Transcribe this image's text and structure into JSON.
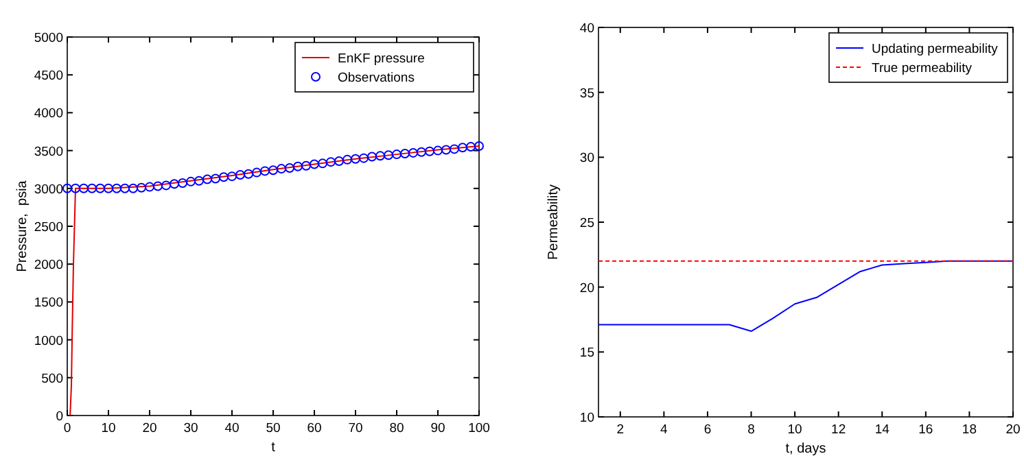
{
  "chart_data": [
    {
      "type": "line",
      "xlabel": "t",
      "ylabel": "Pressure,  psia",
      "xlim": [
        0,
        100
      ],
      "ylim": [
        0,
        5000
      ],
      "xticks": [
        0,
        10,
        20,
        30,
        40,
        50,
        60,
        70,
        80,
        90,
        100
      ],
      "yticks": [
        0,
        500,
        1000,
        1500,
        2000,
        2500,
        3000,
        3500,
        4000,
        4500,
        5000
      ],
      "legend": "top right",
      "series": [
        {
          "name": "EnKF pressure",
          "color": "#e00000",
          "x": [
            0.7,
            1,
            1.2,
            1.5,
            1.8,
            2,
            10,
            20,
            30,
            40,
            50,
            60,
            70,
            80,
            90,
            100
          ],
          "values": [
            0,
            400,
            1100,
            2000,
            2600,
            3000,
            3000,
            3030,
            3100,
            3170,
            3250,
            3320,
            3390,
            3450,
            3510,
            3560
          ]
        },
        {
          "name": "Observations",
          "color": "#0000ff",
          "type": "scatter",
          "marker": "circle",
          "x": [
            0,
            2,
            4,
            6,
            8,
            10,
            12,
            14,
            16,
            18,
            20,
            22,
            24,
            26,
            28,
            30,
            32,
            34,
            36,
            38,
            40,
            42,
            44,
            46,
            48,
            50,
            52,
            54,
            56,
            58,
            60,
            62,
            64,
            66,
            68,
            70,
            72,
            74,
            76,
            78,
            80,
            82,
            84,
            86,
            88,
            90,
            92,
            94,
            96,
            98,
            100
          ],
          "values": [
            3000,
            3000,
            3000,
            3000,
            3000,
            3000,
            3000,
            3000,
            3000,
            3010,
            3020,
            3030,
            3040,
            3060,
            3070,
            3090,
            3100,
            3120,
            3130,
            3150,
            3160,
            3180,
            3190,
            3210,
            3230,
            3240,
            3260,
            3270,
            3290,
            3300,
            3320,
            3330,
            3350,
            3360,
            3380,
            3390,
            3400,
            3420,
            3430,
            3440,
            3450,
            3460,
            3470,
            3480,
            3490,
            3500,
            3510,
            3520,
            3540,
            3550,
            3560
          ]
        }
      ]
    },
    {
      "type": "line",
      "xlabel": "t, days",
      "ylabel": "Permeability",
      "xlim": [
        1,
        20
      ],
      "ylim": [
        10,
        40
      ],
      "xticks": [
        2,
        4,
        6,
        8,
        10,
        12,
        14,
        16,
        18,
        20
      ],
      "yticks": [
        10,
        15,
        20,
        25,
        30,
        35,
        40
      ],
      "legend": "top right",
      "series": [
        {
          "name": "Updating permeability",
          "color": "#0000ff",
          "line_style": "solid",
          "x": [
            1,
            7,
            8,
            9,
            10,
            11,
            12,
            13,
            14,
            15,
            16,
            17,
            18,
            19,
            20
          ],
          "values": [
            17.1,
            17.1,
            16.6,
            17.6,
            18.7,
            19.2,
            20.2,
            21.2,
            21.7,
            21.8,
            21.9,
            22,
            22,
            22,
            22
          ]
        },
        {
          "name": "True permeability",
          "color": "#ff0000",
          "line_style": "dashed",
          "x": [
            1,
            20
          ],
          "values": [
            22,
            22
          ]
        }
      ]
    }
  ]
}
